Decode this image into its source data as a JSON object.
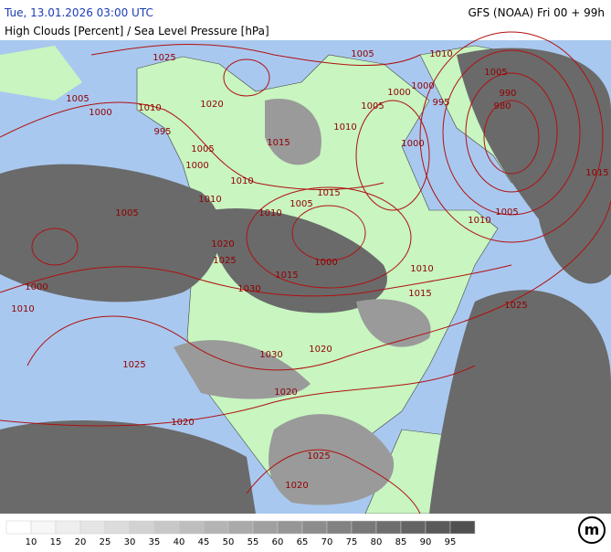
{
  "header": {
    "valid_time": "Tue, 13.01.2026 03:00 UTC",
    "model_run": "GFS (NOAA) Fri 00 + 99h",
    "parameter": "High Clouds [Percent] / Sea Level Pressure [hPa]"
  },
  "map": {
    "isobar_labels": [
      "1025",
      "1005",
      "1010",
      "1005",
      "1005",
      "1000",
      "1010",
      "1020",
      "1000",
      "1000",
      "995",
      "990",
      "980",
      "1005",
      "1010",
      "995",
      "1005",
      "1015",
      "1000",
      "1000",
      "1010",
      "1015",
      "1010",
      "1015",
      "1005",
      "1005",
      "1010",
      "1010",
      "1005",
      "1020",
      "1025",
      "1000",
      "1010",
      "1015",
      "1015",
      "1000",
      "1010",
      "1030",
      "1025",
      "1020",
      "1030",
      "1025",
      "1020",
      "1020",
      "1025",
      "1020"
    ]
  },
  "legend": {
    "items": [
      {
        "color": "#ffffff"
      },
      {
        "label": "10",
        "color": "#f7f7f7"
      },
      {
        "label": "15",
        "color": "#eeeeee"
      },
      {
        "label": "20",
        "color": "#e5e5e5"
      },
      {
        "label": "25",
        "color": "#dcdcdc"
      },
      {
        "label": "30",
        "color": "#d2d2d2"
      },
      {
        "label": "35",
        "color": "#c8c8c8"
      },
      {
        "label": "40",
        "color": "#bebebe"
      },
      {
        "label": "45",
        "color": "#b4b4b4"
      },
      {
        "label": "50",
        "color": "#aaaaaa"
      },
      {
        "label": "55",
        "color": "#a0a0a0"
      },
      {
        "label": "60",
        "color": "#969696"
      },
      {
        "label": "65",
        "color": "#8c8c8c"
      },
      {
        "label": "70",
        "color": "#828282"
      },
      {
        "label": "75",
        "color": "#787878"
      },
      {
        "label": "80",
        "color": "#6e6e6e"
      },
      {
        "label": "85",
        "color": "#646464"
      },
      {
        "label": "90",
        "color": "#5a5a5a"
      },
      {
        "label": "95",
        "color": "#505050"
      }
    ]
  },
  "logo": {
    "text": "m"
  }
}
